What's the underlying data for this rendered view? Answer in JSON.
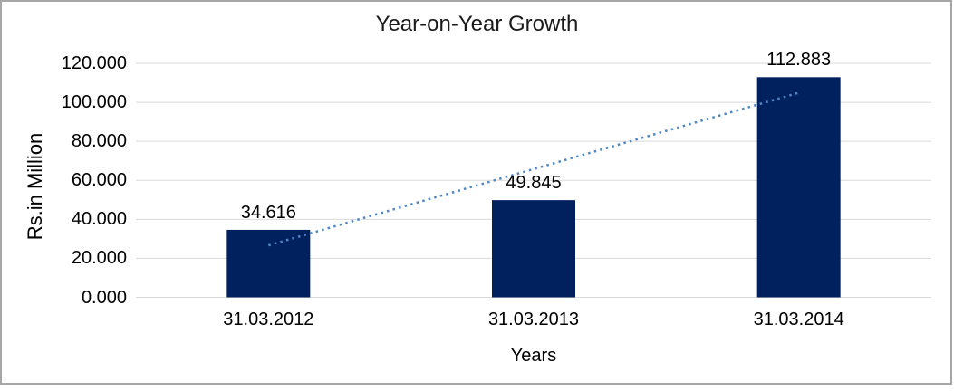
{
  "chart_data": {
    "type": "bar",
    "title": "Year-on-Year Growth",
    "xlabel": "Years",
    "ylabel": "Rs.in Million",
    "categories": [
      "31.03.2012",
      "31.03.2013",
      "31.03.2014"
    ],
    "values": [
      34.616,
      49.845,
      112.883
    ],
    "data_labels": [
      "34.616",
      "49.845",
      "112.883"
    ],
    "y_ticks": [
      "0.000",
      "20.000",
      "40.000",
      "60.000",
      "80.000",
      "100.000",
      "120.000"
    ],
    "ylim": [
      0,
      120
    ],
    "y_tick_step": 20,
    "grid": true,
    "legend": "none",
    "bar_color": "#00215E",
    "gridline_color": "#D9D9D9",
    "axis_line_color": "#D9D9D9",
    "border_color": "#A6A6A6",
    "text_color": "#000000",
    "trendline": {
      "type": "linear",
      "style": "dotted",
      "color": "#4F87C5",
      "spans": "first bar center to last bar center"
    }
  }
}
